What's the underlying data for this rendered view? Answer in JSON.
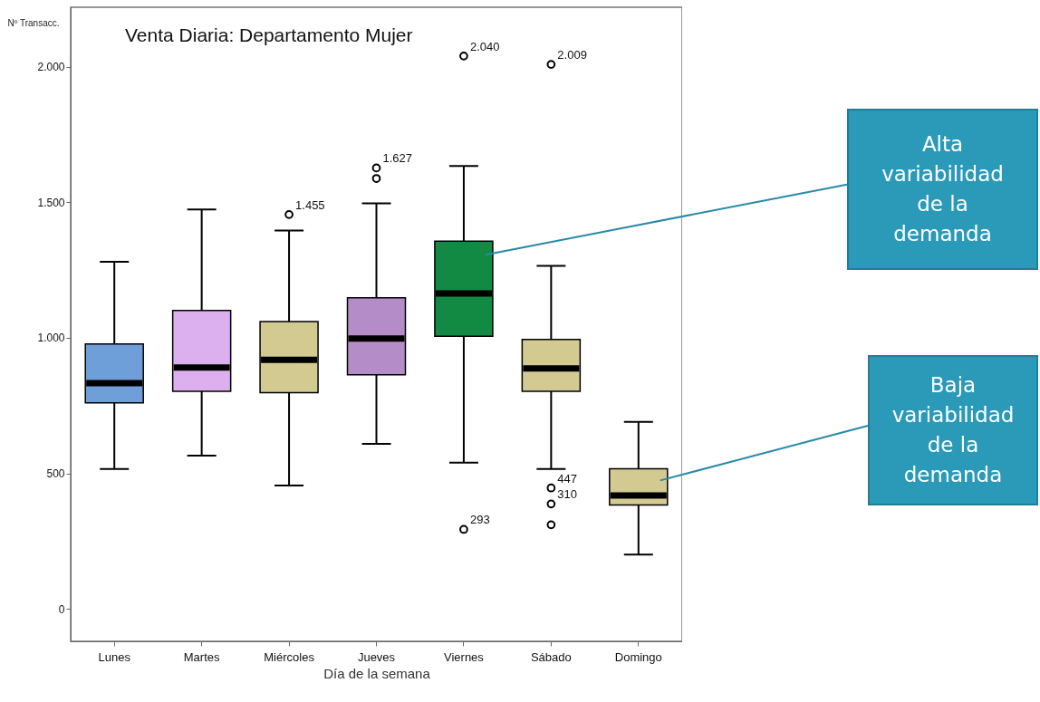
{
  "chart_data": {
    "type": "box",
    "title": "Venta Diaria: Departamento Mujer",
    "xlabel": "Día de la semana",
    "ylabel": "Nº Transacc.",
    "categories": [
      "Lunes",
      "Martes",
      "Miércoles",
      "Jueves",
      "Viernes",
      "Sábado",
      "Domingo"
    ],
    "colors": [
      "#6f9fd8",
      "#dcb0ee",
      "#d3ca92",
      "#b48cc8",
      "#128a44",
      "#d3ca92",
      "#d3ca92"
    ],
    "boxes": [
      {
        "low": 516,
        "q1": 760,
        "median": 833,
        "q3": 977,
        "high": 1281
      },
      {
        "low": 565,
        "q1": 803,
        "median": 890,
        "q3": 1101,
        "high": 1474
      },
      {
        "low": 455,
        "q1": 798,
        "median": 919,
        "q3": 1060,
        "high": 1396,
        "outliers": [
          1455
        ]
      },
      {
        "low": 609,
        "q1": 864,
        "median": 997,
        "q3": 1148,
        "high": 1496,
        "outliers": [
          1627,
          1588
        ]
      },
      {
        "low": 539,
        "q1": 1006,
        "median": 1164,
        "q3": 1357,
        "high": 1634,
        "outliers": [
          2040,
          293
        ]
      },
      {
        "low": 516,
        "q1": 803,
        "median": 887,
        "q3": 994,
        "high": 1266,
        "outliers": [
          2009,
          446,
          387,
          310
        ]
      },
      {
        "low": 200,
        "q1": 383,
        "median": 418,
        "q3": 517,
        "high": 690
      }
    ],
    "ylim": [
      -120,
      2220
    ],
    "yticks": [
      0,
      500,
      {
        "value": 1000,
        "label": "1.000"
      },
      {
        "value": 1500,
        "label": "1.500"
      },
      {
        "value": 2000,
        "label": "2.000"
      }
    ],
    "annotations": [
      "1.455",
      "1.627",
      "2.040",
      "293",
      "2.009",
      "447",
      "310",
      "Alta variabilidad de la demanda",
      "Baja variabilidad de la demanda"
    ]
  }
}
